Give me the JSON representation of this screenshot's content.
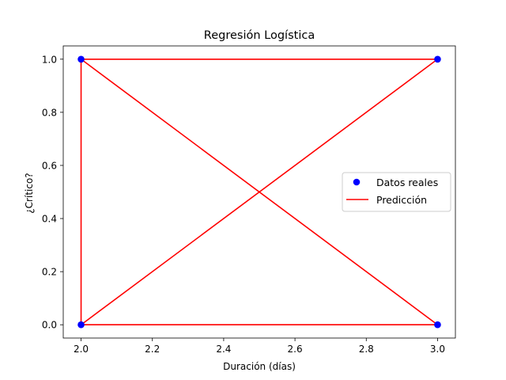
{
  "chart_data": {
    "type": "scatter",
    "title": "Regresión Logística",
    "xlabel": "Duración (días)",
    "ylabel": "¿Crítico?",
    "xlim": [
      1.95,
      3.05
    ],
    "ylim": [
      -0.05,
      1.05
    ],
    "xticks": [
      2.0,
      2.2,
      2.4,
      2.6,
      2.8,
      3.0
    ],
    "xtick_labels": [
      "2.0",
      "2.2",
      "2.4",
      "2.6",
      "2.8",
      "3.0"
    ],
    "yticks": [
      0.0,
      0.2,
      0.4,
      0.6,
      0.8,
      1.0
    ],
    "ytick_labels": [
      "0.0",
      "0.2",
      "0.4",
      "0.6",
      "0.8",
      "1.0"
    ],
    "grid": false,
    "legend_position": "center-right",
    "series": [
      {
        "name": "Datos reales",
        "kind": "scatter",
        "color": "#0000ff",
        "x": [
          2,
          2,
          3,
          3
        ],
        "y": [
          1,
          0,
          1,
          0
        ]
      },
      {
        "name": "Predicción",
        "kind": "line",
        "color": "#ff0000",
        "x": [
          2,
          3,
          2,
          2,
          3,
          2
        ],
        "y": [
          1,
          1,
          1,
          0,
          0,
          0
        ]
      },
      {
        "name": "Predicción",
        "kind": "line",
        "color": "#ff0000",
        "x": [
          2,
          3
        ],
        "y": [
          1,
          0
        ]
      },
      {
        "name": "Predicción",
        "kind": "line",
        "color": "#ff0000",
        "x": [
          2,
          3
        ],
        "y": [
          0,
          1
        ]
      }
    ]
  }
}
